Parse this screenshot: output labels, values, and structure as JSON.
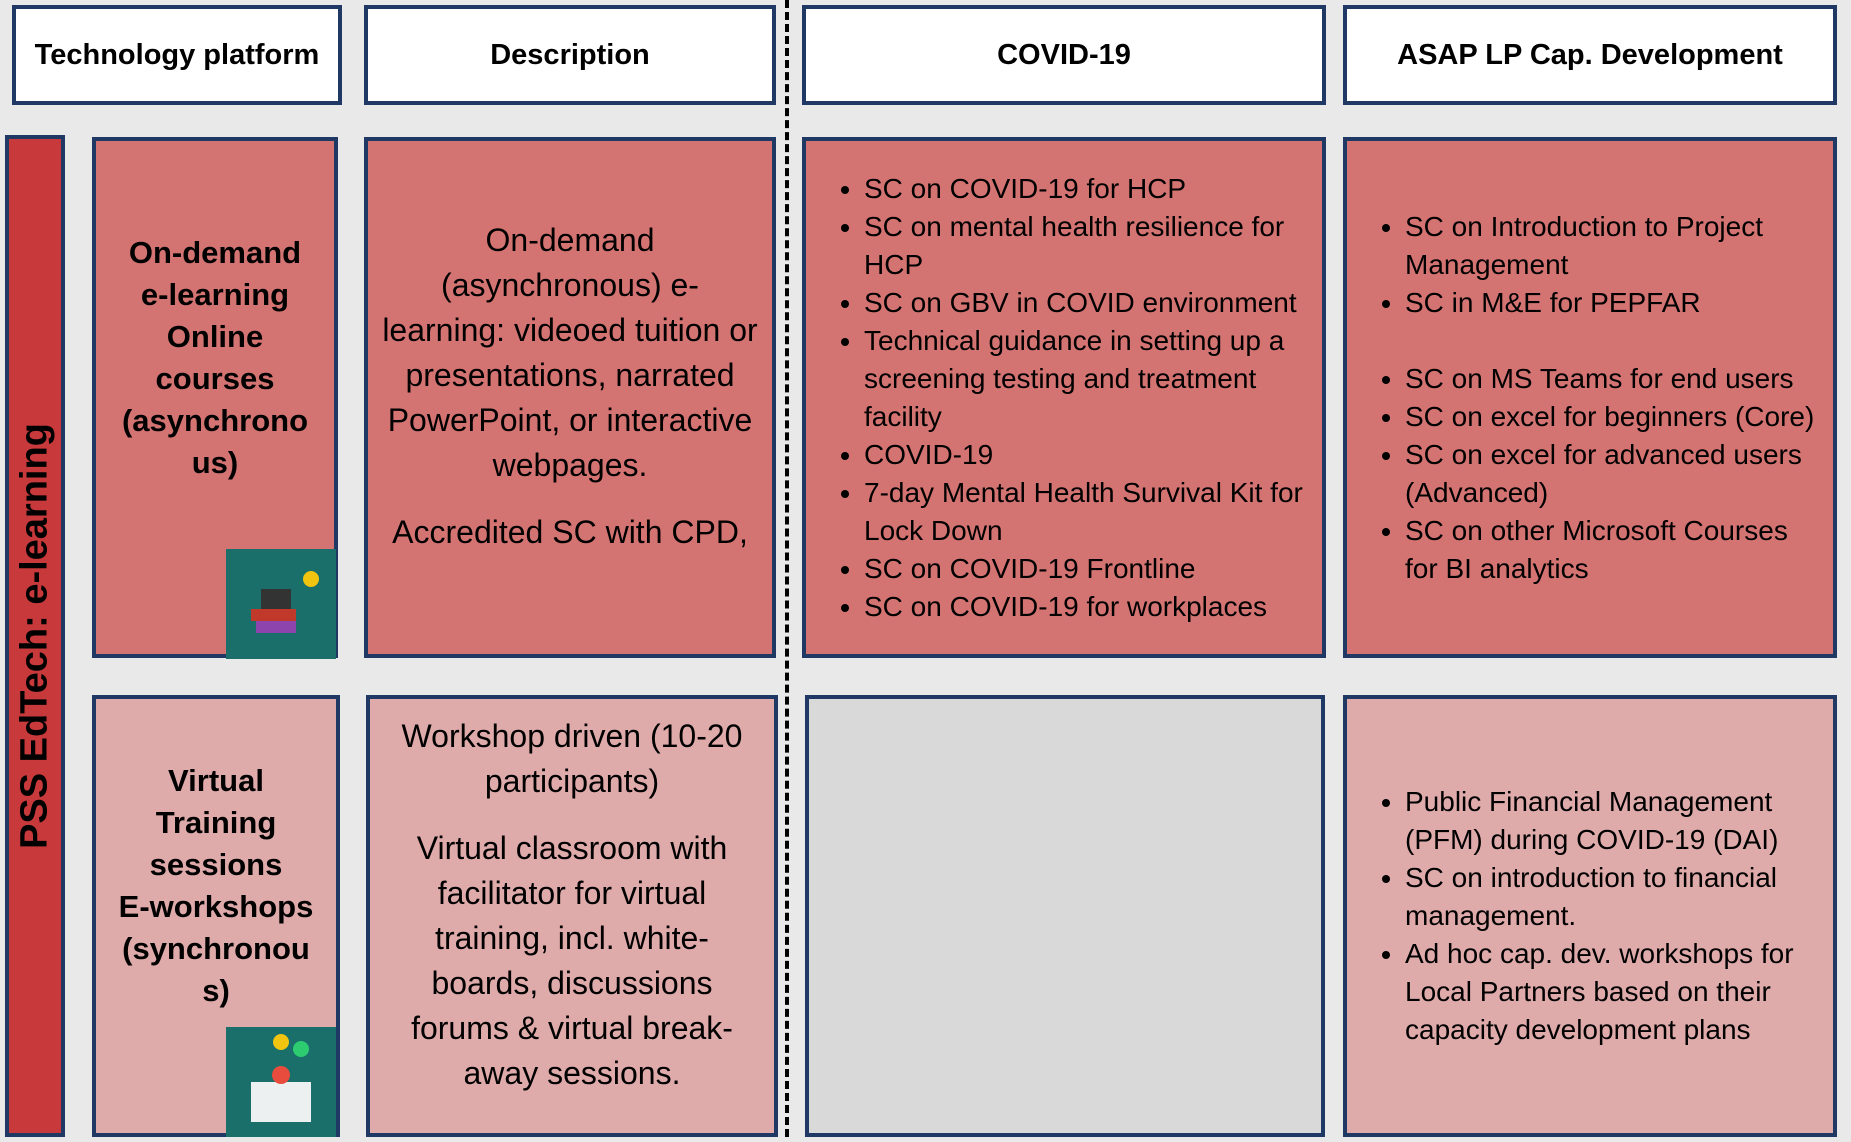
{
  "headers": [
    "Technology platform",
    "Description",
    "COVID-19",
    "ASAP LP Cap. Development"
  ],
  "side_label": "PSS EdTech: e-learning",
  "rows": [
    {
      "platform": [
        "On-demand",
        "e-learning",
        "Online",
        "courses",
        "(asynchrono",
        "us)"
      ],
      "description": [
        "On-demand (asynchronous) e-learning: videoed tuition or presentations, narrated PowerPoint, or interactive webpages.",
        "Accredited SC with CPD,"
      ],
      "covid": [
        "SC on COVID-19 for HCP",
        "SC on mental health resilience for HCP",
        "SC on GBV in COVID environment",
        "Technical guidance in setting up a screening testing and treatment facility",
        "COVID-19",
        "7-day Mental Health Survival Kit for Lock Down",
        "SC on COVID-19 Frontline",
        "SC on COVID-19 for workplaces"
      ],
      "asap": [
        "SC on Introduction to Project Management",
        "SC in M&E for PEPFAR",
        "SC on MS Teams for end users",
        "SC on excel for beginners (Core)",
        "SC on excel for advanced users (Advanced)",
        "SC on other Microsoft Courses for BI analytics"
      ]
    },
    {
      "platform": [
        "Virtual",
        "Training",
        "sessions",
        "E-workshops",
        "(synchronou",
        "s)"
      ],
      "description": [
        "Workshop driven (10-20 participants)",
        "Virtual classroom with facilitator for virtual training, incl. white-boards, discussions forums & virtual break-away sessions."
      ],
      "covid": [],
      "asap": [
        "Public Financial Management (PFM) during COVID-19 (DAI)",
        "SC on introduction to financial management.",
        "Ad hoc cap. dev. workshops for Local Partners based on their capacity development plans"
      ]
    }
  ]
}
